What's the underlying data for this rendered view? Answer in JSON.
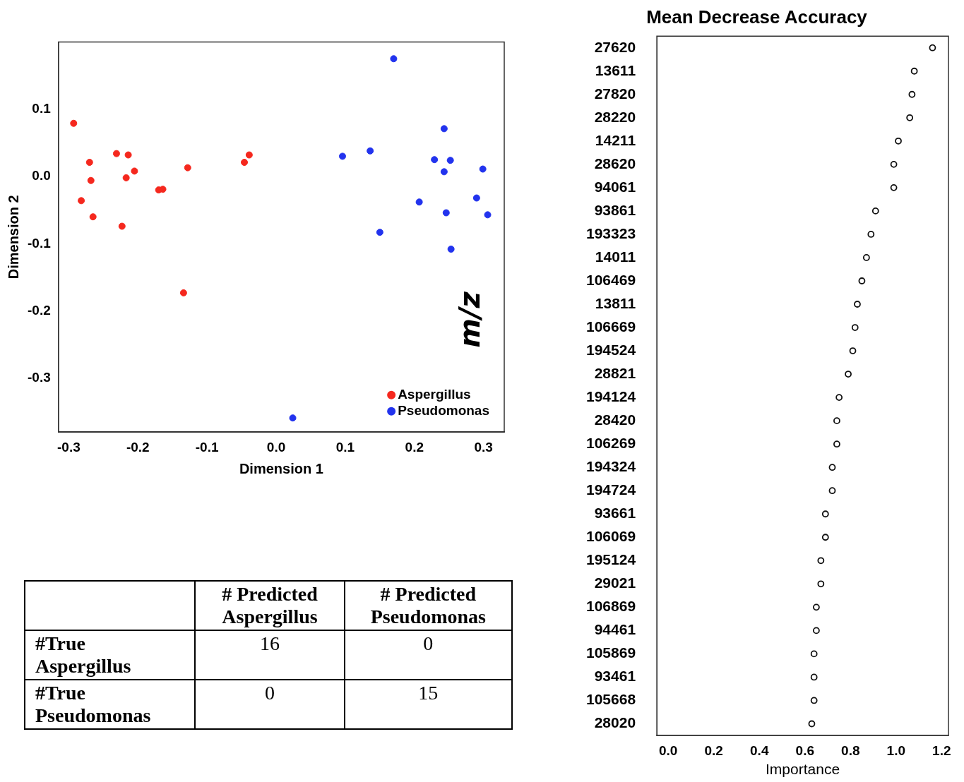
{
  "chart_data": [
    {
      "type": "scatter",
      "xlabel": "Dimension 1",
      "ylabel": "Dimension 2",
      "legend": "bottom right",
      "marker": "circle",
      "grid": false,
      "xlim": [
        -0.315,
        0.33
      ],
      "ylim": [
        -0.38,
        0.2
      ],
      "xticks": [
        {
          "value": -0.3,
          "label": "-0.3"
        },
        {
          "value": -0.2,
          "label": "-0.2"
        },
        {
          "value": -0.1,
          "label": "-0.1"
        },
        {
          "value": 0,
          "label": "0.0"
        },
        {
          "value": 0.1,
          "label": "0.1"
        },
        {
          "value": 0.2,
          "label": "0.2"
        },
        {
          "value": 0.3,
          "label": "0.3"
        }
      ],
      "yticks": [
        {
          "value": -0.3,
          "label": "-0.3"
        },
        {
          "value": -0.2,
          "label": "-0.2"
        },
        {
          "value": -0.1,
          "label": "-0.1"
        },
        {
          "value": 0,
          "label": "0.0"
        },
        {
          "value": 0.1,
          "label": "0.1"
        },
        {
          "value": 0.2,
          "label": null
        }
      ],
      "series": [
        {
          "name": "Aspergillus",
          "color": "#f5281e",
          "x": [
            -0.293,
            -0.27,
            -0.231,
            -0.214,
            -0.205,
            -0.217,
            -0.268,
            -0.282,
            -0.265,
            -0.223,
            -0.17,
            -0.164,
            -0.128,
            -0.134,
            -0.046,
            -0.039
          ],
          "values": [
            0.079,
            0.021,
            0.034,
            0.032,
            0.008,
            -0.002,
            -0.006,
            -0.036,
            -0.06,
            -0.074,
            -0.02,
            -0.019,
            0.013,
            -0.173,
            0.021,
            0.032
          ]
        },
        {
          "name": "Pseudomonas",
          "color": "#2233ee",
          "x": [
            0.17,
            0.096,
            0.136,
            0.243,
            0.229,
            0.252,
            0.243,
            0.299,
            0.207,
            0.29,
            0.246,
            0.306,
            0.15,
            0.253,
            0.024
          ],
          "values": [
            0.175,
            0.03,
            0.038,
            0.071,
            0.025,
            0.024,
            0.007,
            0.011,
            -0.038,
            -0.032,
            -0.054,
            -0.057,
            -0.083,
            -0.108,
            -0.359
          ]
        }
      ]
    },
    {
      "type": "heatmap",
      "categories": [
        "# Predicted Aspergillus",
        "# Predicted Pseudomonas"
      ],
      "y_categories": [
        "#True Aspergillus",
        "#True Pseudomonas"
      ],
      "cells": [
        [
          16,
          0
        ],
        [
          0,
          15
        ]
      ],
      "data_labels": true
    },
    {
      "type": "scatter",
      "orientation": "horizontal",
      "title": "Mean Decrease Accuracy",
      "xlabel": "Importance",
      "ylabel": "m/z",
      "marker": "circle",
      "grid": false,
      "xlim": [
        -0.05,
        1.23
      ],
      "xticks": [
        {
          "value": 0,
          "label": "0.0"
        },
        {
          "value": 0.2,
          "label": "0.2"
        },
        {
          "value": 0.4,
          "label": "0.4"
        },
        {
          "value": 0.6,
          "label": "0.6"
        },
        {
          "value": 0.8,
          "label": "0.8"
        },
        {
          "value": 1,
          "label": "1.0"
        },
        {
          "value": 1.2,
          "label": "1.2"
        }
      ],
      "categories": [
        "27620",
        "13611",
        "27820",
        "28220",
        "14211",
        "28620",
        "94061",
        "93861",
        "193323",
        "14011",
        "106469",
        "13811",
        "106669",
        "194524",
        "28821",
        "194124",
        "28420",
        "106269",
        "194324",
        "194724",
        "93661",
        "106069",
        "195124",
        "29021",
        "106869",
        "94461",
        "105869",
        "93461",
        "105668",
        "28020"
      ],
      "values": [
        1.16,
        1.08,
        1.07,
        1.06,
        1.01,
        0.99,
        0.99,
        0.91,
        0.89,
        0.87,
        0.85,
        0.83,
        0.82,
        0.81,
        0.79,
        0.75,
        0.74,
        0.74,
        0.72,
        0.72,
        0.69,
        0.69,
        0.67,
        0.67,
        0.65,
        0.65,
        0.64,
        0.64,
        0.64,
        0.63
      ],
      "color": "#111111"
    }
  ]
}
